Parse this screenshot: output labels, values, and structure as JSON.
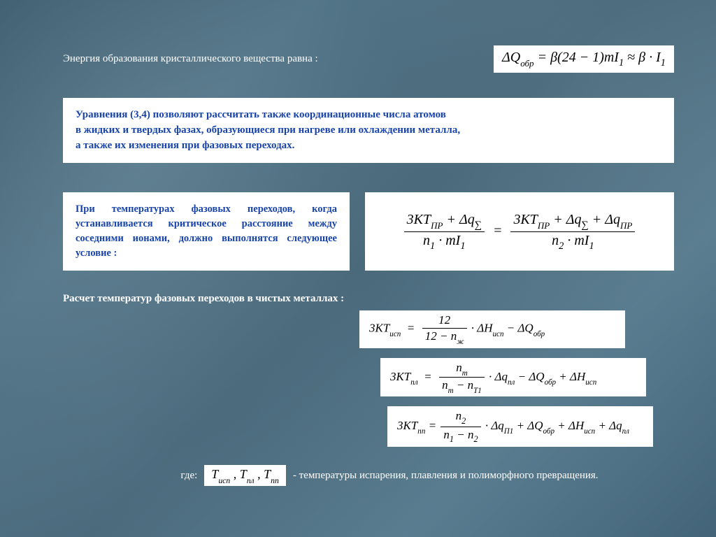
{
  "colors": {
    "background_base": "#4a6b7c",
    "box_bg": "#ffffff",
    "box_text": "#1844aa",
    "body_text": "#ffffff",
    "formula_text": "#000000"
  },
  "typography": {
    "font_family": "Times New Roman",
    "body_fontsize_pt": 12,
    "formula_fontsize_pt": 16,
    "box_fontweight": "bold"
  },
  "row1": {
    "intro": "Энергия образования кристаллического вещества равна :"
  },
  "box1": {
    "line1": "Уравнения (3,4) позволяют рассчитать также координационные числа атомов",
    "line2": "в   жидких и твердых фазах, образующиеся при нагреве или охлаждении металла,",
    "line3": " а также их изменения при фазовых переходах."
  },
  "box2": {
    "text": "При температурах фазовых переходов, когда устанавливается критическое расстояние между соседними ионами, должно выполнятся следующее условие :"
  },
  "heading2": "Расчет температур фазовых переходов в чистых металлах :",
  "footer": {
    "gde": "где:",
    "desc": " -  температуры испарения, плавления и полиморфного превращения."
  }
}
